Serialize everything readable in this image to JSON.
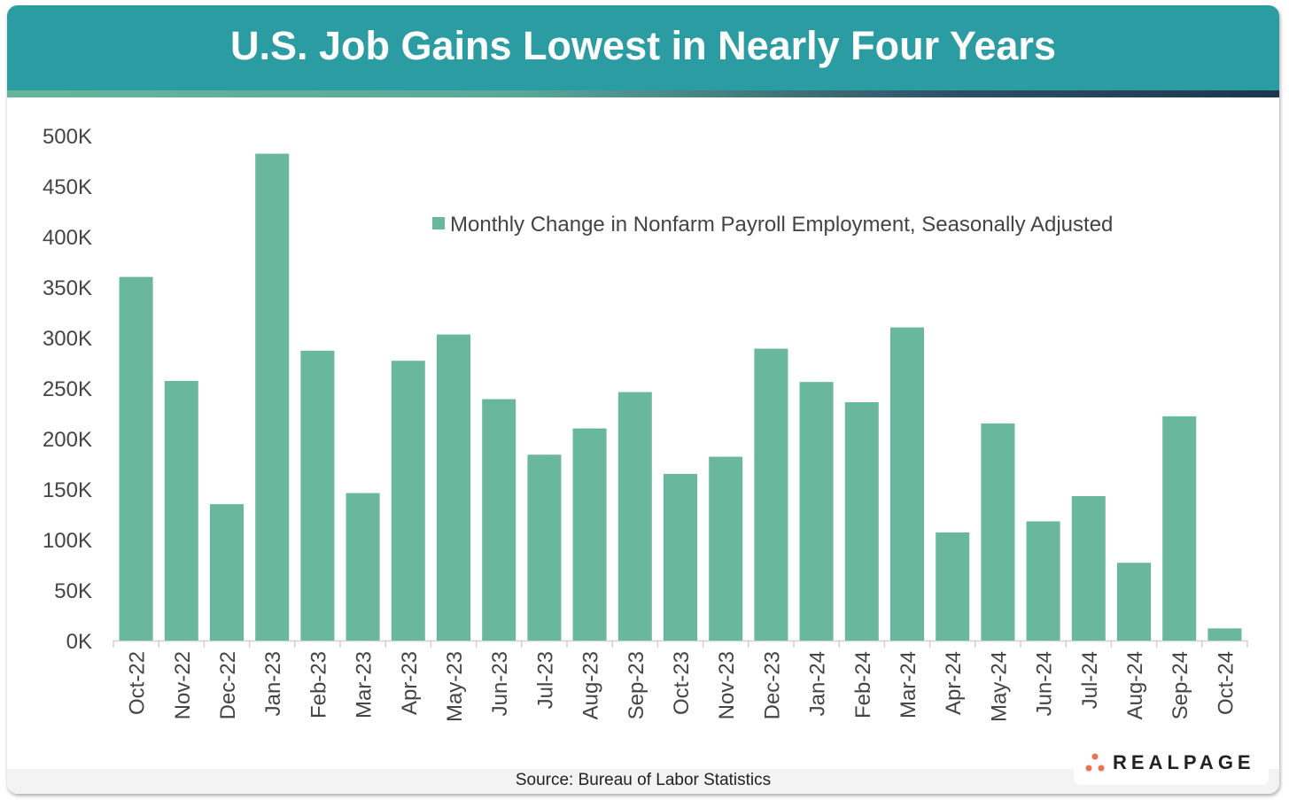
{
  "title": "U.S. Job Gains Lowest in Nearly Four Years",
  "source": "Source: Bureau of Labor Statistics",
  "logo": "REALPAGE",
  "colors": {
    "header": "#2c9ca3",
    "bar": "#69b89e",
    "logo_dots": "#f0714f"
  },
  "chart_data": {
    "type": "bar",
    "title": "U.S. Job Gains Lowest in Nearly Four Years",
    "legend": "top-right",
    "series": [
      {
        "name": "Monthly Change in Nonfarm Payroll Employment, Seasonally Adjusted",
        "values": [
          360,
          257,
          135,
          482,
          287,
          146,
          277,
          303,
          239,
          184,
          210,
          246,
          165,
          182,
          289,
          256,
          236,
          310,
          107,
          215,
          118,
          143,
          77,
          222,
          12
        ]
      }
    ],
    "categories": [
      "Oct-22",
      "Nov-22",
      "Dec-22",
      "Jan-23",
      "Feb-23",
      "Mar-23",
      "Apr-23",
      "May-23",
      "Jun-23",
      "Jul-23",
      "Aug-23",
      "Sep-23",
      "Oct-23",
      "Nov-23",
      "Dec-23",
      "Jan-24",
      "Feb-24",
      "Mar-24",
      "Apr-24",
      "May-24",
      "Jun-24",
      "Jul-24",
      "Aug-24",
      "Sep-24",
      "Oct-24"
    ],
    "yticks": [
      "0K",
      "50K",
      "100K",
      "150K",
      "200K",
      "250K",
      "300K",
      "350K",
      "400K",
      "450K",
      "500K"
    ],
    "ylim": [
      0,
      500
    ],
    "yunit": "thousands",
    "grid": false
  }
}
